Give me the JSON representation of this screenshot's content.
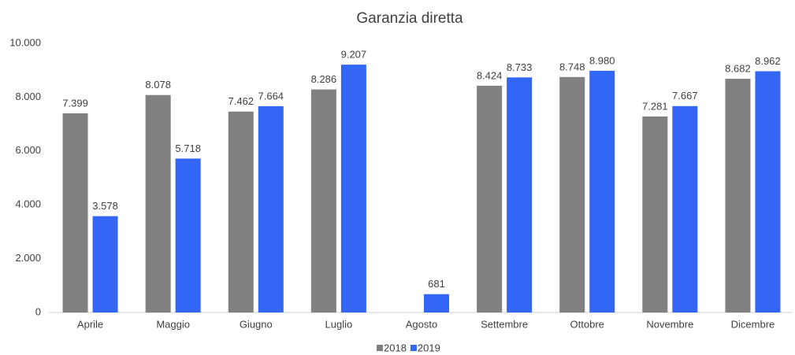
{
  "chart_data": {
    "type": "bar",
    "title": "Garanzia diretta",
    "categories": [
      "Aprile",
      "Maggio",
      "Giugno",
      "Luglio",
      "Agosto",
      "Settembre",
      "Ottobre",
      "Novembre",
      "Dicembre"
    ],
    "series": [
      {
        "name": "2018",
        "color": "#808080",
        "values": [
          7399,
          8078,
          7462,
          8286,
          null,
          8424,
          8748,
          7281,
          8682
        ],
        "value_labels": [
          "7.399",
          "8.078",
          "7.462",
          "8.286",
          null,
          "8.424",
          "8.748",
          "7.281",
          "8.682"
        ]
      },
      {
        "name": "2019",
        "color": "#3366f5",
        "values": [
          3578,
          5718,
          7664,
          9207,
          681,
          8733,
          8980,
          7667,
          8962
        ],
        "value_labels": [
          "3.578",
          "5.718",
          "7.664",
          "9.207",
          "681",
          "8.733",
          "8.980",
          "7.667",
          "8.962"
        ]
      }
    ],
    "ylim": [
      0,
      10000
    ],
    "yticks": [
      0,
      {
        "value": 2000,
        "label": "2.000"
      },
      {
        "value": 4000,
        "label": "4.000"
      },
      {
        "value": 6000,
        "label": "6.000"
      },
      {
        "value": 8000,
        "label": "8.000"
      },
      {
        "value": 10000,
        "label": "10.000"
      }
    ],
    "grid": false,
    "legend": "bottom"
  }
}
